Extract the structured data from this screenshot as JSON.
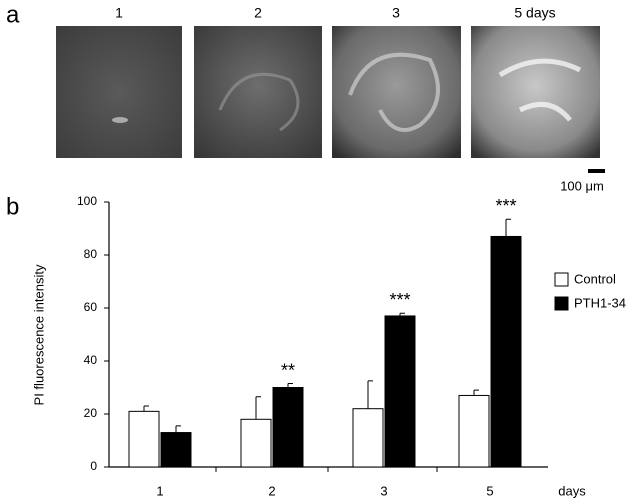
{
  "panel_a": {
    "label": "a",
    "image_labels": [
      "1",
      "2",
      "3",
      "5 days"
    ],
    "scale_bar": "100 μm"
  },
  "panel_b_label": "b",
  "chart_data": {
    "type": "bar",
    "y_label": "PI fluorescence intensity",
    "x_label": "days",
    "categories": [
      "1",
      "2",
      "3",
      "5"
    ],
    "series": [
      {
        "name": "Control",
        "color": "#ffffff",
        "values": [
          21,
          18,
          22,
          27
        ],
        "errors": [
          2,
          8.5,
          10.5,
          2
        ]
      },
      {
        "name": "PTH1-34",
        "color": "#000000",
        "values": [
          13,
          30,
          57,
          87
        ],
        "errors": [
          2.5,
          1.5,
          1,
          6.5
        ]
      }
    ],
    "significance": [
      null,
      "**",
      "***",
      "***"
    ],
    "ylim": [
      0,
      100
    ],
    "yticks": [
      0,
      20,
      40,
      60,
      80,
      100
    ],
    "grid": false,
    "legend": "right"
  }
}
